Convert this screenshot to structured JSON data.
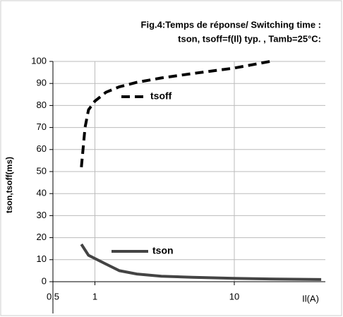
{
  "chart_data": {
    "type": "line",
    "title": "Fig.4:Temps de réponse/ Switching time :",
    "subtitle": "tson, tsoff=f(Il) typ. , Tamb=25°C:",
    "x_label": "Il(A)",
    "y_label": "tson,tsoff(ms)",
    "log_x": true,
    "grid": true,
    "xlim": [
      0.5,
      45
    ],
    "ylim": [
      0,
      100
    ],
    "xticks": [
      {
        "value": 0.5,
        "label": "0,5"
      },
      1,
      10
    ],
    "yticks": [
      0,
      10,
      20,
      30,
      40,
      50,
      60,
      70,
      80,
      90,
      100
    ],
    "series": [
      {
        "name": "tsoff",
        "color": "#000000",
        "dashed": true,
        "x": [
          0.8,
          0.85,
          0.9,
          1.0,
          1.2,
          1.5,
          2,
          3,
          5,
          10,
          18
        ],
        "values": [
          52,
          70,
          78,
          82,
          86,
          88.5,
          90.5,
          92.5,
          94.5,
          97,
          100
        ]
      },
      {
        "name": "tson",
        "color": "#444444",
        "dashed": false,
        "x": [
          0.8,
          0.9,
          1.2,
          1.5,
          2,
          3,
          5,
          10,
          20,
          42
        ],
        "values": [
          17,
          12,
          8,
          5,
          3.5,
          2.5,
          2,
          1.5,
          1.2,
          1
        ]
      }
    ]
  }
}
